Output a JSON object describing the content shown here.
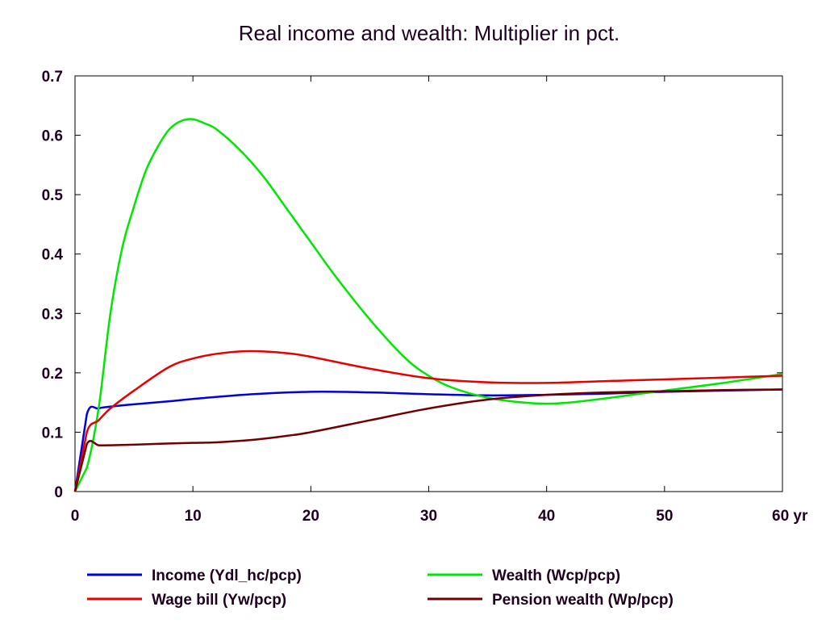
{
  "chart_data": {
    "type": "line",
    "title": "Real income and wealth: Multiplier in pct.",
    "xlabel": "",
    "ylabel": "",
    "x_unit_label": "yr",
    "xlim": [
      0,
      60
    ],
    "ylim": [
      0,
      0.7
    ],
    "x_ticks": [
      0,
      10,
      20,
      30,
      40,
      50,
      60
    ],
    "y_ticks": [
      0,
      0.1,
      0.2,
      0.3,
      0.4,
      0.5,
      0.6,
      0.7
    ],
    "x_tick_labels": [
      "0",
      "10",
      "20",
      "30",
      "40",
      "50",
      "60 yr"
    ],
    "y_tick_labels": [
      "0",
      "0.1",
      "0.2",
      "0.3",
      "0.4",
      "0.5",
      "0.6",
      "0.7"
    ],
    "grid": false,
    "legend_position": "bottom",
    "series": [
      {
        "name": "Income (Ydl_hc/pcp)",
        "color": "#0000dd",
        "x": [
          0,
          1,
          2,
          3,
          5,
          8,
          10,
          15,
          20,
          25,
          30,
          35,
          40,
          45,
          50,
          55,
          60
        ],
        "values": [
          0,
          0.13,
          0.14,
          0.143,
          0.147,
          0.152,
          0.156,
          0.164,
          0.168,
          0.167,
          0.164,
          0.162,
          0.163,
          0.165,
          0.168,
          0.17,
          0.172
        ]
      },
      {
        "name": "Wealth (Wcp/pcp)",
        "color": "#00e600",
        "x": [
          0,
          1,
          2,
          3,
          4,
          5,
          6,
          7,
          8,
          9,
          10,
          11,
          12,
          14,
          16,
          18,
          20,
          22,
          25,
          28,
          30,
          32,
          35,
          38,
          40,
          42,
          45,
          48,
          50,
          55,
          60
        ],
        "values": [
          0,
          0.04,
          0.14,
          0.3,
          0.41,
          0.48,
          0.54,
          0.58,
          0.61,
          0.624,
          0.627,
          0.62,
          0.61,
          0.575,
          0.53,
          0.475,
          0.42,
          0.365,
          0.29,
          0.225,
          0.195,
          0.175,
          0.158,
          0.15,
          0.148,
          0.15,
          0.157,
          0.165,
          0.17,
          0.183,
          0.198
        ]
      },
      {
        "name": "Wage bill (Yw/pcp)",
        "color": "#e60000",
        "x": [
          0,
          1,
          2,
          3,
          5,
          8,
          10,
          12,
          14,
          16,
          18,
          20,
          25,
          30,
          35,
          40,
          45,
          50,
          55,
          60
        ],
        "values": [
          0,
          0.1,
          0.12,
          0.14,
          0.17,
          0.21,
          0.224,
          0.232,
          0.236,
          0.236,
          0.233,
          0.227,
          0.207,
          0.191,
          0.184,
          0.183,
          0.186,
          0.189,
          0.192,
          0.195
        ]
      },
      {
        "name": "Pension wealth (Wp/pcp)",
        "color": "#700000",
        "x": [
          0,
          1,
          2,
          3,
          5,
          8,
          10,
          12,
          15,
          18,
          20,
          25,
          30,
          35,
          40,
          45,
          50,
          55,
          60
        ],
        "values": [
          0,
          0.08,
          0.078,
          0.078,
          0.079,
          0.081,
          0.082,
          0.083,
          0.087,
          0.094,
          0.1,
          0.12,
          0.14,
          0.155,
          0.163,
          0.167,
          0.169,
          0.171,
          0.172
        ]
      }
    ]
  }
}
